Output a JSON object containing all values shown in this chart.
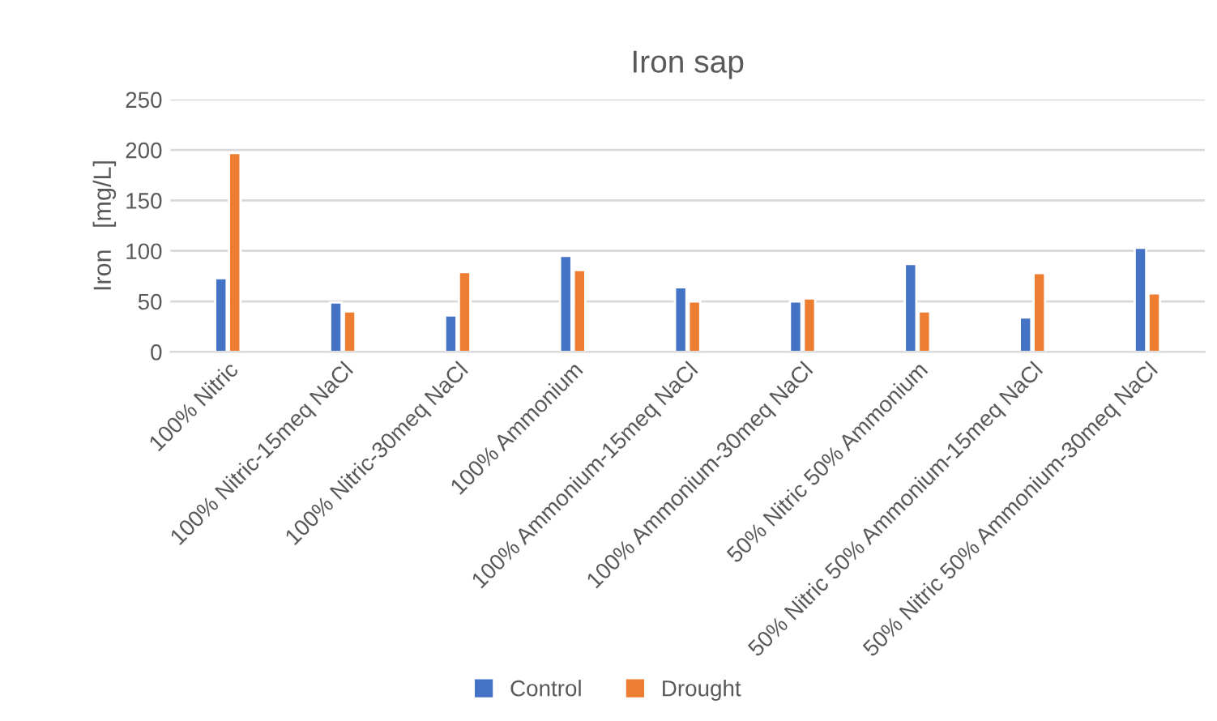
{
  "chart_data": {
    "type": "bar",
    "title": "Iron sap",
    "ylabel": "Iron   [mg/L]",
    "categories": [
      "100% Nitric",
      "100% Nitric-15meq NaCl",
      "100% Nitric-30meq NaCl",
      "100% Ammonium",
      "100% Ammonium-15meq NaCl",
      "100% Ammonium-30meq NaCl",
      "50% Nitric 50% Ammonium",
      "50% Nitric 50% Ammonium-15meq NaCl",
      "50% Nitric 50% Ammonium-30meq NaCl"
    ],
    "series": [
      {
        "name": "Control",
        "color": "#4472c4",
        "values": [
          73,
          49,
          36,
          95,
          64,
          50,
          87,
          34,
          103
        ]
      },
      {
        "name": "Drought",
        "color": "#ed7d31",
        "values": [
          197,
          40,
          79,
          81,
          50,
          53,
          40,
          78,
          58
        ]
      }
    ],
    "ylim": [
      0,
      250
    ],
    "yticks": [
      0,
      50,
      100,
      150,
      200,
      250
    ],
    "grid": "y",
    "legend": "bottom"
  }
}
